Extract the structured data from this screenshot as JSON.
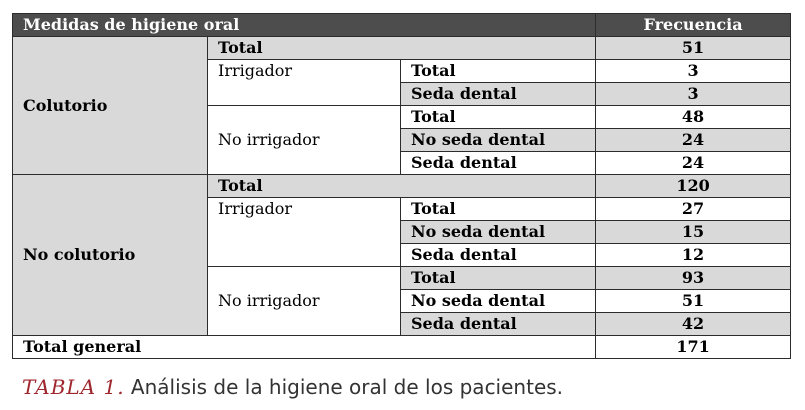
{
  "table": {
    "header": {
      "col_measure": "Medidas de higiene oral",
      "col_freq": "Frecuencia"
    },
    "colutorio": {
      "label": "Colutorio",
      "total_label": "Total",
      "total_value": "51",
      "irrigador": {
        "label": "Irrigador",
        "total_label": "Total",
        "total_value": "3",
        "seda_label": "Seda dental",
        "seda_value": "3"
      },
      "no_irrigador": {
        "label": "No irrigador",
        "total_label": "Total",
        "total_value": "48",
        "no_seda_label": "No seda dental",
        "no_seda_value": "24",
        "seda_label": "Seda dental",
        "seda_value": "24"
      }
    },
    "no_colutorio": {
      "label": "No colutorio",
      "total_label": "Total",
      "total_value": "120",
      "irrigador": {
        "label": "Irrigador",
        "total_label": "Total",
        "total_value": "27",
        "no_seda_label": "No seda dental",
        "no_seda_value": "15",
        "seda_label": "Seda dental",
        "seda_value": "12"
      },
      "no_irrigador": {
        "label": "No irrigador",
        "total_label": "Total",
        "total_value": "93",
        "no_seda_label": "No seda dental",
        "no_seda_value": "51",
        "seda_label": "Seda dental",
        "seda_value": "42"
      }
    },
    "total_general": {
      "label": "Total general",
      "value": "171"
    }
  },
  "caption": {
    "tag": "TABLA 1.",
    "text": "Análisis de la higiene oral de los pacientes."
  },
  "colors": {
    "header_bg": "#4d4d4d",
    "shade": "#d9d9d9",
    "caption_tag": "#a0262e"
  }
}
